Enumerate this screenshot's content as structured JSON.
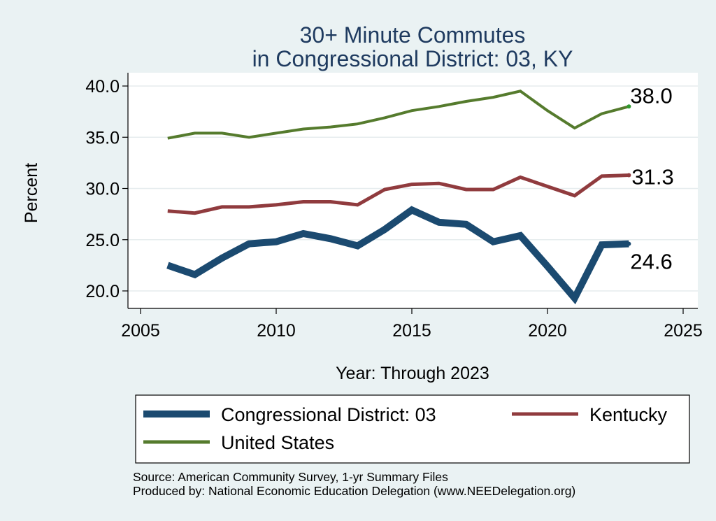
{
  "chart_data": {
    "type": "line",
    "title": [
      "30+ Minute Commutes",
      "in Congressional District:  03, KY"
    ],
    "xlabel": "Year: Through 2023",
    "ylabel": "Percent",
    "xlim": [
      2005,
      2025
    ],
    "ylim": [
      19,
      41
    ],
    "xticks": [
      2005,
      2010,
      2015,
      2020,
      2025
    ],
    "yticks": [
      20.0,
      25.0,
      30.0,
      35.0,
      40.0
    ],
    "ytick_labels": [
      "20.0",
      "25.0",
      "30.0",
      "35.0",
      "40.0"
    ],
    "grid": "horizontal",
    "x": [
      2006,
      2007,
      2008,
      2009,
      2010,
      2011,
      2012,
      2013,
      2014,
      2015,
      2016,
      2017,
      2018,
      2019,
      2020,
      2021,
      2022,
      2023
    ],
    "series": [
      {
        "name": "Congressional District:  03",
        "color": "#1b4a70",
        "values": [
          22.5,
          21.6,
          23.2,
          24.6,
          24.8,
          25.6,
          25.1,
          24.4,
          26.0,
          27.9,
          26.7,
          26.5,
          24.8,
          25.4,
          22.4,
          19.3,
          24.5,
          24.6
        ],
        "end_label": "24.6"
      },
      {
        "name": "Kentucky",
        "color": "#903b3e",
        "values": [
          27.8,
          27.6,
          28.2,
          28.2,
          28.4,
          28.7,
          28.7,
          28.4,
          29.9,
          30.4,
          30.5,
          29.9,
          29.9,
          31.1,
          30.2,
          29.3,
          31.2,
          31.3
        ],
        "end_label": "31.3"
      },
      {
        "name": "United States",
        "color": "#557b2d",
        "values": [
          34.9,
          35.4,
          35.4,
          35.0,
          35.4,
          35.8,
          36.0,
          36.3,
          36.9,
          37.6,
          38.0,
          38.5,
          38.9,
          39.5,
          37.6,
          35.9,
          37.3,
          38.0
        ],
        "end_label": "38.0"
      }
    ],
    "legend": {
      "placement": "bottom",
      "entries": [
        "Congressional District:  03",
        "Kentucky",
        "United States"
      ]
    },
    "notes": [
      "Source: American Community Survey, 1-yr Summary Files",
      "Produced by: National Economic Education Delegation (www.NEEDelegation.org)"
    ]
  }
}
